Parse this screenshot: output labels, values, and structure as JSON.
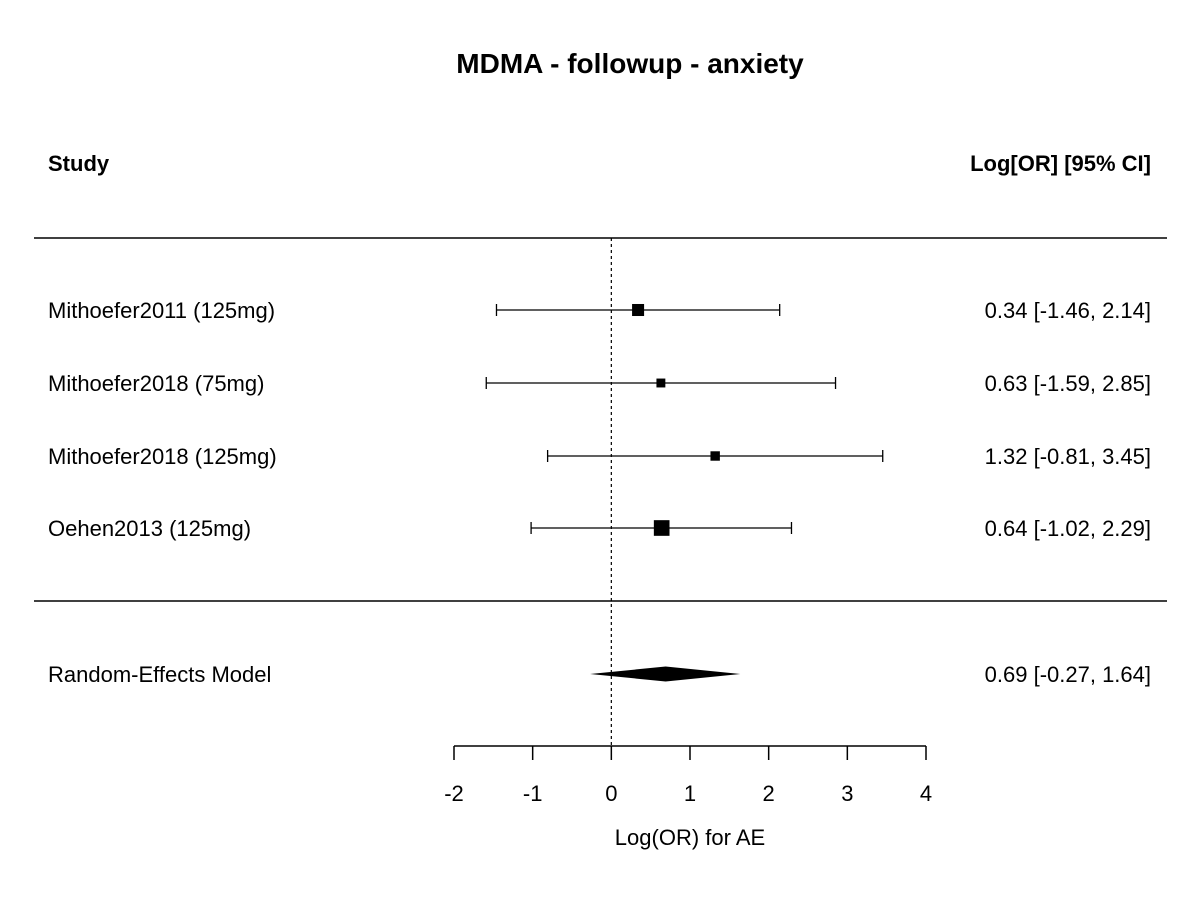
{
  "chart_data": {
    "type": "forest",
    "title": "MDMA - followup - anxiety",
    "column_headers": {
      "study": "Study",
      "estimate": "Log[OR] [95% CI]"
    },
    "studies": [
      {
        "label": "Mithoefer2011 (125mg)",
        "estimate": 0.34,
        "ci_low": -1.46,
        "ci_high": 2.14,
        "ci_text": "0.34 [-1.46, 2.14]",
        "weight": 0.27
      },
      {
        "label": "Mithoefer2018 (75mg)",
        "estimate": 0.63,
        "ci_low": -1.59,
        "ci_high": 2.85,
        "ci_text": "0.63 [-1.59, 2.85]",
        "weight": 0.15
      },
      {
        "label": "Mithoefer2018 (125mg)",
        "estimate": 1.32,
        "ci_low": -0.81,
        "ci_high": 3.45,
        "ci_text": "1.32 [-0.81, 3.45]",
        "weight": 0.17
      },
      {
        "label": "Oehen2013 (125mg)",
        "estimate": 0.64,
        "ci_low": -1.02,
        "ci_high": 2.29,
        "ci_text": "0.64 [-1.02, 2.29]",
        "weight": 0.41
      }
    ],
    "summary": {
      "label": "Random-Effects Model",
      "estimate": 0.69,
      "ci_low": -0.27,
      "ci_high": 1.64,
      "ci_text": "0.69 [-0.27, 1.64]"
    },
    "x_axis": {
      "label": "Log(OR) for AE",
      "ticks": [
        -2,
        -1,
        0,
        1,
        2,
        3,
        4
      ],
      "tick_labels": [
        "-2",
        "-1",
        "0",
        "1",
        "2",
        "3",
        "4"
      ],
      "range": [
        -2,
        4
      ]
    },
    "reference_line": 0
  }
}
